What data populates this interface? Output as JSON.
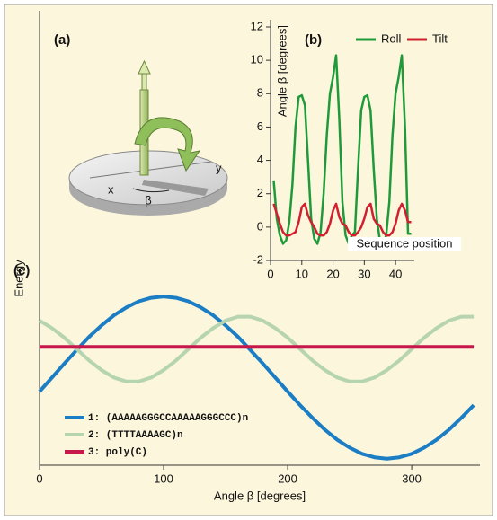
{
  "illustration": {
    "label": "(a)",
    "axis_x": "x",
    "axis_y": "y",
    "angle": "β"
  },
  "chart_data": [
    {
      "type": "line",
      "panel_label": "(b)",
      "y_label": "Angle β [degrees]",
      "x_label": "Sequence position",
      "legend": "upper right",
      "x": [
        1,
        2,
        3,
        4,
        5,
        6,
        7,
        8,
        9,
        10,
        11,
        12,
        13,
        14,
        15,
        16,
        17,
        18,
        19,
        20,
        21,
        22,
        23,
        24,
        25,
        26,
        27,
        28,
        29,
        30,
        31,
        32,
        33,
        34,
        35,
        36,
        37,
        38,
        39,
        40,
        41,
        42,
        43,
        44,
        45
      ],
      "xlim": [
        0,
        46
      ],
      "xticks": [
        0,
        10,
        20,
        30,
        40
      ],
      "ylim": [
        -2,
        12
      ],
      "yticks": [
        -2,
        0,
        2,
        4,
        6,
        8,
        10,
        12
      ],
      "series": [
        {
          "name": "Roll",
          "color": "#1f9a3a",
          "values": [
            2.8,
            0.5,
            -0.5,
            -1.0,
            -0.8,
            0.3,
            2.5,
            6.0,
            7.8,
            7.9,
            7.3,
            4.0,
            0.5,
            -0.7,
            -1.0,
            -0.3,
            2.0,
            5.5,
            8.0,
            9.0,
            10.3,
            6.5,
            1.5,
            -0.5,
            -1.0,
            -0.5,
            -0.3,
            3.5,
            7.0,
            7.8,
            7.9,
            7.0,
            3.5,
            0.5,
            -0.8,
            -1.0,
            -0.5,
            1.5,
            5.5,
            8.0,
            9.0,
            10.3,
            6.0,
            -0.4,
            -0.4
          ]
        },
        {
          "name": "Tilt",
          "color": "#d21f2f",
          "values": [
            1.4,
            0.8,
            0.2,
            -0.3,
            -0.5,
            -0.5,
            -0.4,
            -0.3,
            0.3,
            1.2,
            1.4,
            0.7,
            0.3,
            0.0,
            -0.4,
            -0.5,
            -0.5,
            -0.3,
            0.2,
            1.0,
            1.4,
            0.6,
            0.2,
            0.1,
            -0.3,
            -0.5,
            -0.5,
            -0.3,
            0.0,
            0.5,
            1.2,
            1.4,
            0.5,
            0.2,
            0.1,
            -0.3,
            -0.5,
            -0.5,
            -0.3,
            0.2,
            1.0,
            1.4,
            1.0,
            0.3,
            0.3
          ]
        }
      ]
    },
    {
      "type": "line",
      "panel_label": "(c)",
      "y_label": "Energy",
      "x_label": "Angle β [degrees]",
      "legend": "lower left",
      "x": [
        0,
        10,
        20,
        30,
        40,
        50,
        60,
        70,
        80,
        90,
        100,
        110,
        120,
        130,
        140,
        150,
        160,
        170,
        180,
        190,
        200,
        210,
        220,
        230,
        240,
        250,
        260,
        270,
        280,
        290,
        300,
        310,
        320,
        330,
        340,
        350
      ],
      "xlim": [
        0,
        355
      ],
      "xticks": [
        0,
        100,
        200,
        300
      ],
      "ylim": [
        0,
        10
      ],
      "series": [
        {
          "name": "1: (AAAAAGGGCCAAAAAGGGCCC)n",
          "color": "#1b7dc4",
          "values": [
            1.68,
            2.0,
            2.32,
            2.63,
            2.93,
            3.19,
            3.42,
            3.6,
            3.74,
            3.82,
            3.85,
            3.82,
            3.74,
            3.6,
            3.42,
            3.19,
            2.93,
            2.63,
            2.32,
            2.0,
            1.68,
            1.37,
            1.08,
            0.81,
            0.58,
            0.4,
            0.26,
            0.18,
            0.15,
            0.18,
            0.26,
            0.4,
            0.58,
            0.81,
            1.08,
            1.37
          ]
        },
        {
          "name": "2: (TTTTAAAAGC)n",
          "color": "#b6d4b0",
          "values": [
            3.3,
            3.13,
            2.91,
            2.65,
            2.39,
            2.17,
            2.0,
            1.91,
            1.91,
            2.0,
            2.17,
            2.39,
            2.65,
            2.91,
            3.13,
            3.3,
            3.39,
            3.39,
            3.3,
            3.13,
            2.91,
            2.65,
            2.39,
            2.17,
            2.0,
            1.91,
            1.91,
            2.0,
            2.17,
            2.39,
            2.65,
            2.91,
            3.13,
            3.3,
            3.39,
            3.39
          ]
        },
        {
          "name": "3: poly(C)",
          "color": "#c8174a",
          "values": [
            2.7,
            2.7,
            2.7,
            2.7,
            2.7,
            2.7,
            2.7,
            2.7,
            2.7,
            2.7,
            2.7,
            2.7,
            2.7,
            2.7,
            2.7,
            2.7,
            2.7,
            2.7,
            2.7,
            2.7,
            2.7,
            2.7,
            2.7,
            2.7,
            2.7,
            2.7,
            2.7,
            2.7,
            2.7,
            2.7,
            2.7,
            2.7,
            2.7,
            2.7,
            2.7,
            2.7
          ]
        }
      ]
    }
  ]
}
